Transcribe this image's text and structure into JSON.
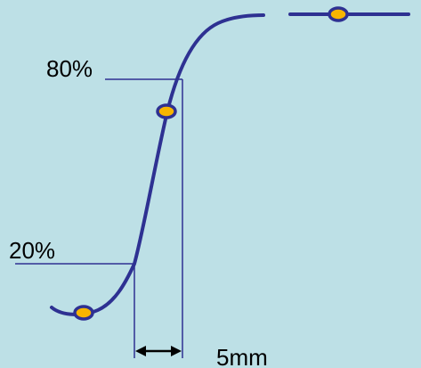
{
  "labels": {
    "upper_level": "80%",
    "lower_level": "20%",
    "width": "5mm"
  },
  "colors": {
    "background": "#bde0e6",
    "curve": "#2e3192",
    "marker_fill": "#f7b500",
    "marker_stroke": "#2e3192",
    "guide_lines": "#2e3192",
    "arrow": "#000000"
  }
}
